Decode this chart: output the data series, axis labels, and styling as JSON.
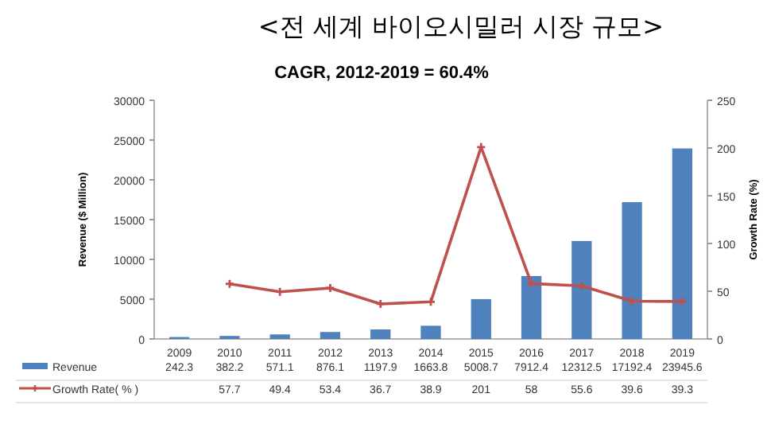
{
  "chart_data": {
    "type": "bar",
    "title": "<전 세계 바이오시밀러 시장 규모>",
    "subtitle": "CAGR, 2012-2019 = 60.4%",
    "ylabel": "Revenue ($ Million)",
    "y2label": "Growth Rate (%)",
    "categories": [
      "2009",
      "2010",
      "2011",
      "2012",
      "2013",
      "2014",
      "2015",
      "2016",
      "2017",
      "2018",
      "2019"
    ],
    "series": [
      {
        "name": "Revenue",
        "color": "#4f81bd",
        "values": [
          242.3,
          382.2,
          571.1,
          876.1,
          1197.9,
          1663.8,
          5008.7,
          7912.4,
          12312.5,
          17192.4,
          23945.6
        ]
      },
      {
        "name": "Growth Rate( % )",
        "type": "line",
        "axis": "y2",
        "color": "#c0504d",
        "marker": "cross",
        "values": [
          null,
          57.7,
          49.4,
          53.4,
          36.7,
          38.9,
          201,
          58,
          55.6,
          39.6,
          39.3
        ]
      }
    ],
    "ylim": [
      0,
      30000
    ],
    "yticks": [
      0,
      5000,
      10000,
      15000,
      20000,
      25000,
      30000
    ],
    "y2lim": [
      0,
      250
    ],
    "y2ticks": [
      0,
      50,
      100,
      150,
      200,
      250
    ],
    "data_labels": true,
    "legend": "bottom",
    "grid": false
  }
}
